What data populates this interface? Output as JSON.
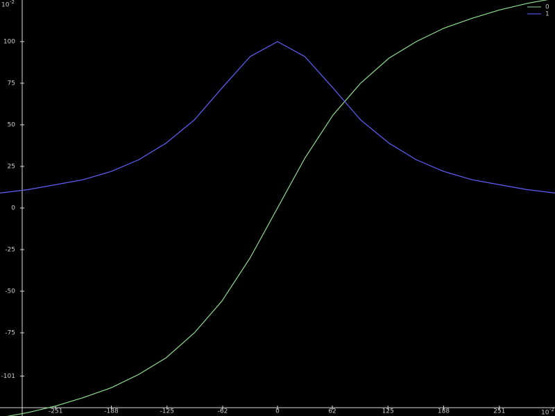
{
  "chart_data": {
    "type": "line",
    "x": [
      -314,
      -283,
      -251,
      -220,
      -188,
      -157,
      -126,
      -94,
      -63,
      -31,
      0,
      31,
      63,
      94,
      126,
      157,
      188,
      220,
      251,
      283,
      314
    ],
    "series": [
      {
        "name": "0",
        "color": "#90e090",
        "values": [
          -126,
          -123,
          -119,
          -114,
          -108,
          -100,
          -90,
          -75,
          -56,
          -30,
          0,
          30,
          56,
          75,
          90,
          100,
          108,
          114,
          119,
          123,
          126
        ]
      },
      {
        "name": "1",
        "color": "#6060ff",
        "values": [
          9,
          11,
          14,
          17,
          22,
          29,
          39,
          53,
          72,
          91,
          100,
          91,
          72,
          53,
          39,
          29,
          22,
          17,
          14,
          11,
          9
        ]
      }
    ],
    "xlim": [
      -314,
      314
    ],
    "ylim": [
      -125,
      125
    ],
    "xticks": [
      -251,
      -188,
      -125,
      -62,
      0,
      62,
      125,
      188,
      251
    ],
    "yticks": [
      -101,
      -75,
      -50,
      -25,
      0,
      25,
      50,
      75,
      100
    ],
    "x_scale": {
      "base": "10",
      "exponent": "-2"
    },
    "y_scale": {
      "base": "10",
      "exponent": "-2"
    },
    "legend": "top-right"
  }
}
